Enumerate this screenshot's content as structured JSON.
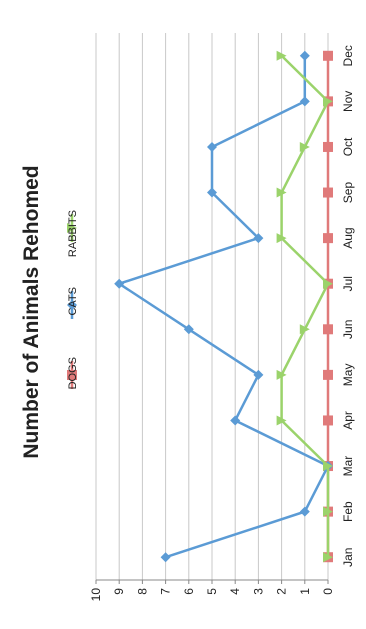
{
  "chart_data": {
    "type": "line",
    "title": "Number of Animals Rehomed",
    "categories": [
      "Jan",
      "Feb",
      "Mar",
      "Apr",
      "May",
      "Jun",
      "Jul",
      "Aug",
      "Sep",
      "Oct",
      "Nov",
      "Dec"
    ],
    "ylim": [
      0,
      10
    ],
    "yticks": [
      "0",
      "1",
      "2",
      "3",
      "4",
      "5",
      "6",
      "7",
      "8",
      "9",
      "10"
    ],
    "orientation": "rotated-90-clockwise",
    "grid": true,
    "legend_position": "top",
    "series": [
      {
        "name": "DOGS",
        "color": "#e07a7a",
        "marker": "square",
        "values": [
          0,
          0,
          0,
          0,
          0,
          0,
          0,
          0,
          0,
          0,
          0,
          0
        ]
      },
      {
        "name": "CATS",
        "color": "#5b9bd5",
        "marker": "diamond",
        "values": [
          7,
          1,
          0,
          4,
          3,
          6,
          9,
          3,
          5,
          5,
          1,
          1
        ]
      },
      {
        "name": "RABBITS",
        "color": "#9bd36b",
        "marker": "triangle",
        "values": [
          0,
          0,
          0,
          2,
          2,
          1,
          0,
          2,
          2,
          1,
          0,
          2
        ]
      }
    ]
  }
}
